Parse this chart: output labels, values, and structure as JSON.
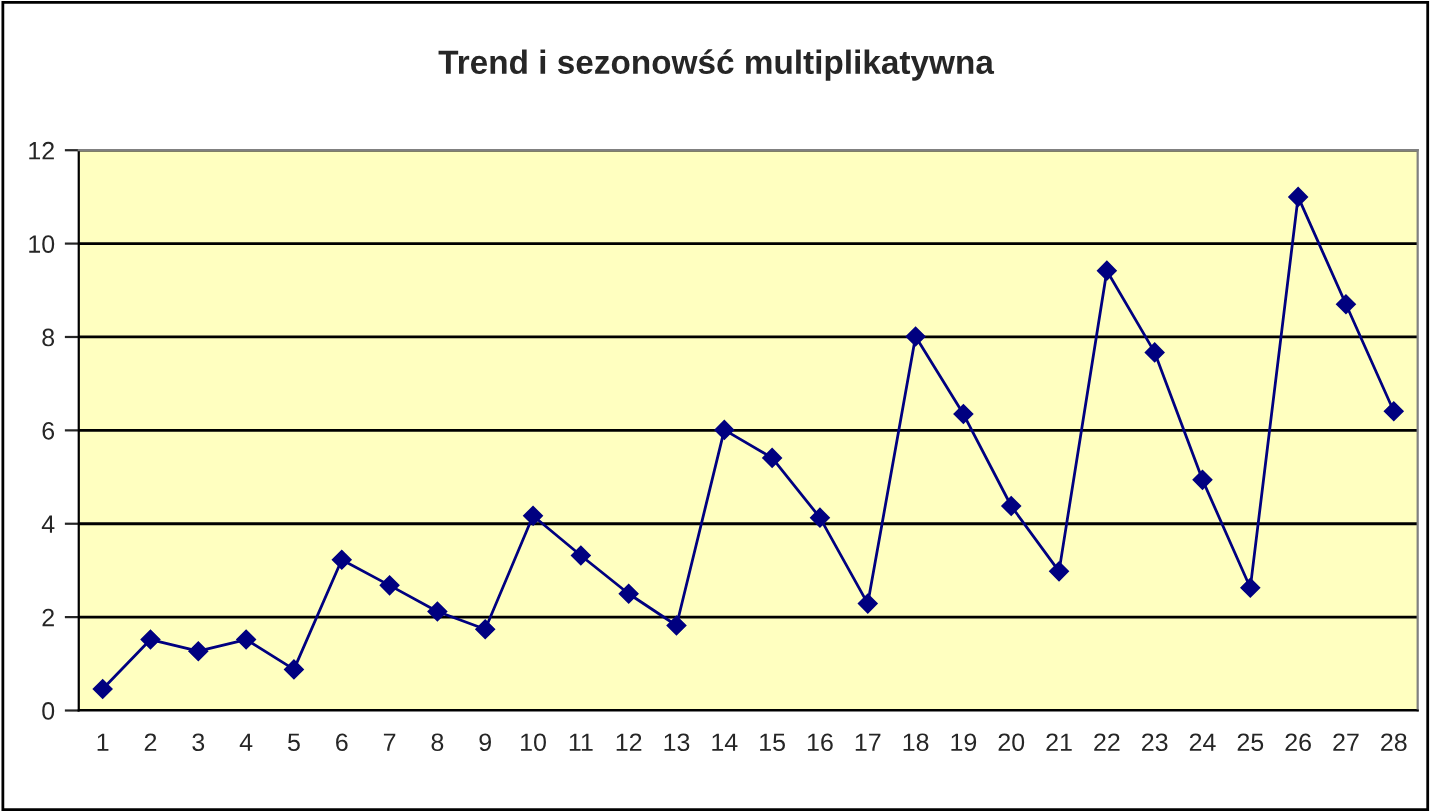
{
  "chart_data": {
    "type": "line",
    "title": "Trend i sezonowść multiplikatywna",
    "categories": [
      "1",
      "2",
      "3",
      "4",
      "5",
      "6",
      "7",
      "8",
      "9",
      "10",
      "11",
      "12",
      "13",
      "14",
      "15",
      "16",
      "17",
      "18",
      "19",
      "20",
      "21",
      "22",
      "23",
      "24",
      "25",
      "26",
      "27",
      "28"
    ],
    "series": [
      {
        "color": "#000080",
        "values": [
          0.46,
          1.52,
          1.27,
          1.52,
          0.88,
          3.23,
          2.68,
          2.12,
          1.74,
          4.17,
          3.32,
          2.5,
          1.82,
          6.01,
          5.41,
          4.13,
          2.29,
          8.01,
          6.35,
          4.38,
          2.98,
          9.42,
          7.67,
          4.94,
          2.63,
          11.0,
          8.7,
          6.41
        ]
      }
    ],
    "ylim": [
      0,
      12
    ],
    "yticks": [
      0,
      2,
      4,
      6,
      8,
      10,
      12
    ],
    "grid": "y",
    "marker": "diamond",
    "line_style": "solid",
    "legend": false
  }
}
